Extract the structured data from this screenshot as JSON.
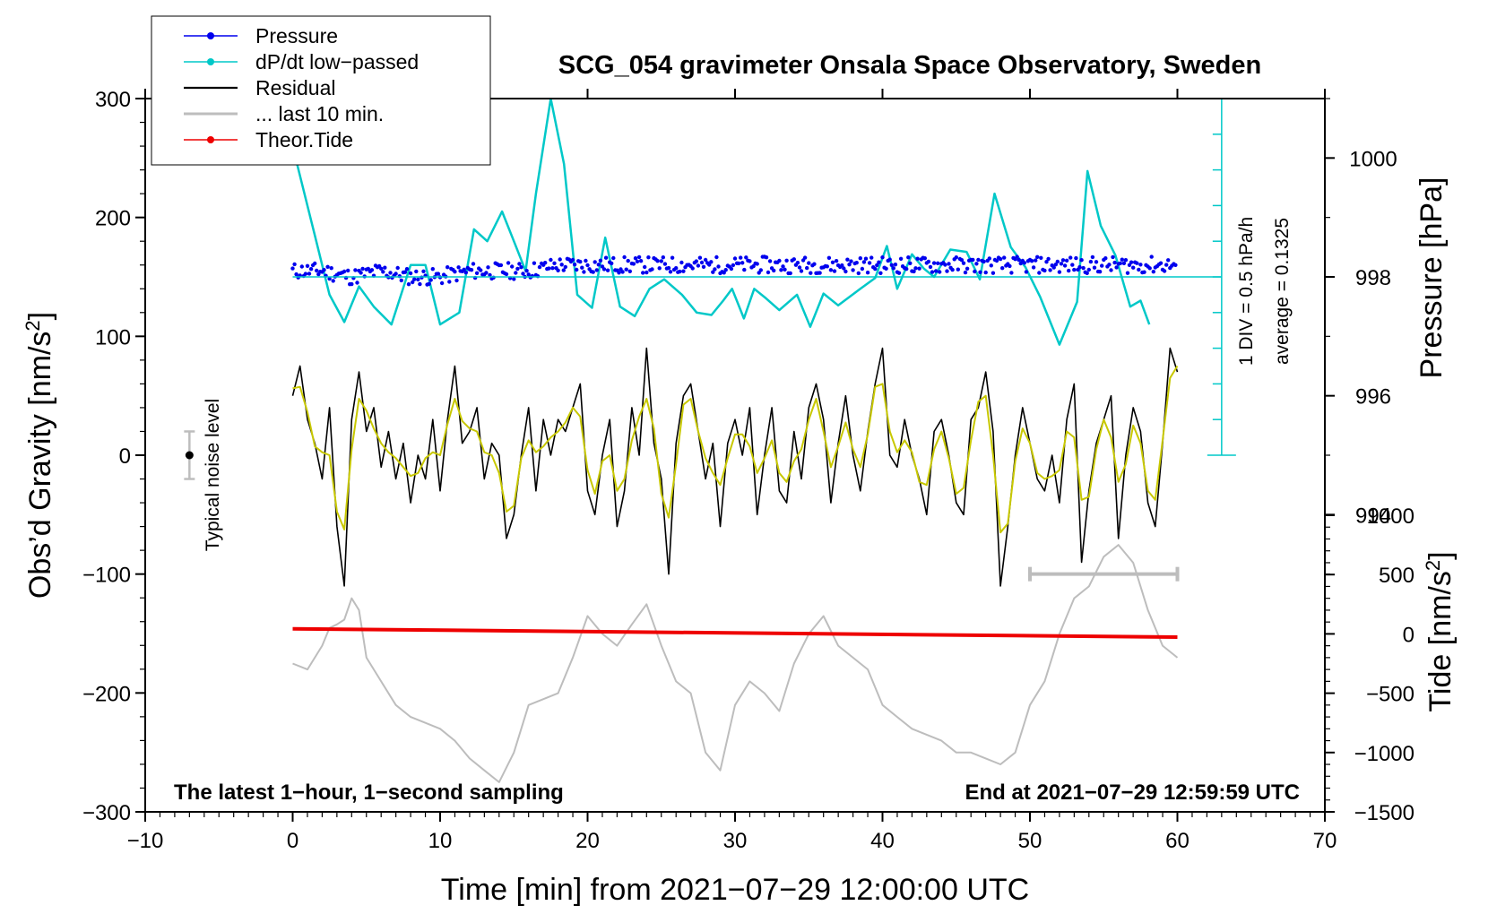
{
  "chart_data": {
    "type": "line",
    "title": "SCG_054 gravimeter Onsala Space Observatory, Sweden",
    "xlabel": "Time [min] from 2021−07−29 12:00:00 UTC",
    "ylabel_prefix": "Obs’d Gravity [nm/s",
    "ylabel_sup": "2",
    "ylabel_suffix": "]",
    "xlim": [
      -10,
      70
    ],
    "ylim": [
      -300,
      300
    ],
    "xticks": [
      -10,
      0,
      10,
      20,
      30,
      40,
      50,
      60,
      70
    ],
    "xtick_labels": [
      "−10",
      "0",
      "10",
      "20",
      "30",
      "40",
      "50",
      "60",
      "70"
    ],
    "yticks": [
      -300,
      -200,
      -100,
      0,
      100,
      200,
      300
    ],
    "ytick_labels": [
      "−300",
      "−200",
      "−100",
      "0",
      "100",
      "200",
      "300"
    ],
    "pressure_axis": {
      "label": "Pressure [hPa]",
      "range": [
        993,
        1001
      ],
      "ticks": [
        994,
        996,
        998,
        1000
      ],
      "tick_labels": [
        "994",
        "996",
        "998",
        "1000"
      ]
    },
    "tide_axis": {
      "label_prefix": "Tide [nm/s",
      "label_sup": "2",
      "label_suffix": "]",
      "range": [
        -1500,
        1000
      ],
      "ticks": [
        -1500,
        -1000,
        -500,
        0,
        500,
        1000
      ],
      "tick_labels": [
        "−1500",
        "−1000",
        "−500",
        "0",
        "500",
        "1000"
      ]
    },
    "dpdt_axis": {
      "x": 63,
      "y_bottom": 0,
      "y_top": 300,
      "n_divisions": 10,
      "baseline_y": 150,
      "label_div": "1 DIV = 0.5 hPa/h",
      "label_avg": "average = 0.1325"
    },
    "legend": [
      {
        "label": "Pressure",
        "color": "#0000ee",
        "marker": true
      },
      {
        "label": "dP/dt low−passed",
        "color": "#00c8c8",
        "marker": true
      },
      {
        "label": "Residual",
        "color": "#000000",
        "marker": false
      },
      {
        "label": "... last 10 min.",
        "color": "#bdbdbd",
        "marker": false
      },
      {
        "label": "Theor.Tide",
        "color": "#ee0000",
        "marker": true
      }
    ],
    "noise_level": {
      "label": "Typical noise level",
      "x": -7,
      "y": 0,
      "half_range": 20
    },
    "last10_bar": {
      "x_start": 50,
      "x_end": 60,
      "y": -100
    },
    "annotations": {
      "left": "The latest 1−hour, 1−second sampling",
      "right": "End at 2021−07−29 12:59:59 UTC"
    },
    "series": [
      {
        "name": "Pressure",
        "color": "#0000ee",
        "axis": "pressure",
        "x": [
          0,
          2,
          4,
          6,
          8,
          10,
          12,
          14,
          16,
          18,
          20,
          22,
          24,
          26,
          28,
          30,
          32,
          34,
          36,
          38,
          40,
          42,
          44,
          46,
          48,
          50,
          52,
          54,
          56,
          58,
          60
        ],
        "y": [
          998.1,
          998.1,
          998.0,
          998.1,
          998.0,
          998.0,
          998.1,
          998.1,
          998.1,
          998.2,
          998.2,
          998.2,
          998.2,
          998.2,
          998.2,
          998.2,
          998.2,
          998.2,
          998.2,
          998.2,
          998.2,
          998.2,
          998.2,
          998.2,
          998.2,
          998.2,
          998.2,
          998.2,
          998.2,
          998.2,
          998.2
        ]
      },
      {
        "name": "dP/dt low-passed",
        "color": "#00c8c8",
        "axis": "dpdt",
        "x": [
          0.3,
          1.5,
          2.5,
          3.5,
          4.5,
          5.5,
          6.7,
          8,
          9,
          10,
          11.3,
          12.3,
          13.2,
          14.2,
          15,
          15.8,
          16.5,
          17.5,
          18.4,
          19.3,
          20.3,
          21.2,
          22.2,
          23.2,
          24.2,
          25.2,
          26.4,
          27.4,
          28.4,
          29.2,
          29.8,
          30.6,
          31.3,
          32.1,
          33,
          34.2,
          35.1,
          36,
          37,
          38.5,
          39.5,
          40.3,
          41,
          42,
          42.8,
          43.5,
          44.6,
          45.7,
          46.6,
          47.6,
          48.7,
          49.7,
          50.7,
          52,
          53.2,
          53.9,
          54.8,
          55.8,
          56.8,
          57.5,
          58.1
        ],
        "y": [
          245,
          185,
          135,
          112,
          142,
          125,
          110,
          160,
          160,
          110,
          120,
          190,
          180,
          205,
          180,
          155,
          220,
          300,
          245,
          135,
          124,
          183,
          125,
          117,
          140,
          148,
          135,
          120,
          118,
          130,
          140,
          115,
          140,
          132,
          122,
          135,
          108,
          136,
          126,
          140,
          149,
          176,
          140,
          169,
          157,
          150,
          173,
          171,
          148,
          220,
          175,
          158,
          133,
          93,
          129,
          239,
          193,
          168,
          125,
          130,
          110
        ]
      },
      {
        "name": "Residual",
        "color": "#000000",
        "axis": "gravity",
        "x": [
          0,
          0.5,
          1,
          1.5,
          2,
          2.5,
          3,
          3.5,
          4,
          4.5,
          5,
          5.5,
          6,
          6.5,
          7,
          7.5,
          8,
          8.5,
          9,
          9.5,
          10,
          10.5,
          11,
          11.5,
          12,
          12.5,
          13,
          13.5,
          14,
          14.5,
          15,
          15.5,
          16,
          16.5,
          17,
          17.5,
          18,
          18.5,
          19,
          19.5,
          20,
          20.5,
          21,
          21.5,
          22,
          22.5,
          23,
          23.5,
          24,
          24.5,
          25,
          25.5,
          26,
          26.5,
          27,
          27.5,
          28,
          28.5,
          29,
          29.5,
          30,
          30.5,
          31,
          31.5,
          32,
          32.5,
          33,
          33.5,
          34,
          34.5,
          35,
          35.5,
          36,
          36.5,
          37,
          37.5,
          38,
          38.5,
          39,
          39.5,
          40,
          40.5,
          41,
          41.5,
          42,
          42.5,
          43,
          43.5,
          44,
          44.5,
          45,
          45.5,
          46,
          46.5,
          47,
          47.5,
          48,
          48.5,
          49,
          49.5,
          50,
          50.5,
          51,
          51.5,
          52,
          52.5,
          53,
          53.5,
          54,
          54.5,
          55,
          55.5,
          56,
          56.5,
          57,
          57.5,
          58,
          58.5,
          59,
          59.5,
          60
        ],
        "y": [
          50,
          75,
          30,
          10,
          -20,
          40,
          -60,
          -110,
          30,
          70,
          20,
          40,
          -10,
          20,
          -20,
          10,
          -40,
          0,
          -20,
          30,
          -30,
          30,
          75,
          10,
          20,
          40,
          -20,
          10,
          0,
          -70,
          -50,
          0,
          40,
          -30,
          30,
          0,
          30,
          20,
          40,
          60,
          -30,
          -50,
          0,
          30,
          -60,
          -30,
          40,
          0,
          90,
          10,
          -20,
          -100,
          10,
          50,
          60,
          20,
          -20,
          10,
          -60,
          10,
          30,
          0,
          40,
          -50,
          0,
          40,
          -30,
          -40,
          20,
          -20,
          40,
          60,
          30,
          -40,
          10,
          50,
          0,
          -30,
          20,
          60,
          90,
          0,
          -10,
          30,
          0,
          -20,
          -50,
          20,
          30,
          0,
          -40,
          -50,
          30,
          40,
          70,
          20,
          -110,
          -60,
          0,
          40,
          10,
          -20,
          -30,
          0,
          -40,
          30,
          60,
          -90,
          -30,
          10,
          30,
          50,
          -70,
          0,
          40,
          20,
          -40,
          -60,
          10,
          90,
          70
        ]
      },
      {
        "name": "Last 10 min",
        "color": "#bdbdbd",
        "axis": "tide",
        "x": [
          0,
          1,
          2,
          2.5,
          3,
          3.5,
          4,
          4.5,
          5,
          6,
          7,
          8,
          9,
          10,
          11,
          12,
          13,
          14,
          15,
          16,
          17,
          18,
          19,
          20,
          21,
          22,
          23,
          24,
          25,
          26,
          27,
          28,
          29,
          30,
          31,
          32,
          33,
          34,
          35,
          36,
          37,
          38,
          39,
          40,
          41,
          42,
          43,
          44,
          45,
          46,
          47,
          48,
          49,
          50,
          51,
          52,
          53,
          54,
          55,
          56,
          57,
          58,
          59,
          60
        ],
        "y": [
          -250,
          -300,
          -100,
          50,
          80,
          120,
          300,
          200,
          -200,
          -400,
          -600,
          -700,
          -750,
          -800,
          -900,
          -1050,
          -1150,
          -1250,
          -1000,
          -600,
          -550,
          -500,
          -200,
          150,
          0,
          -100,
          80,
          250,
          -100,
          -400,
          -500,
          -1000,
          -1150,
          -600,
          -400,
          -500,
          -650,
          -250,
          0,
          150,
          -100,
          -200,
          -300,
          -600,
          -700,
          -800,
          -850,
          -900,
          -1000,
          -1000,
          -1050,
          -1100,
          -1000,
          -600,
          -400,
          0,
          300,
          400,
          650,
          750,
          600,
          200,
          -100,
          -200
        ]
      },
      {
        "name": "Theor.Tide",
        "color": "#ee0000",
        "axis": "gravity",
        "x": [
          0,
          60
        ],
        "y": [
          -146,
          -153
        ]
      }
    ]
  }
}
